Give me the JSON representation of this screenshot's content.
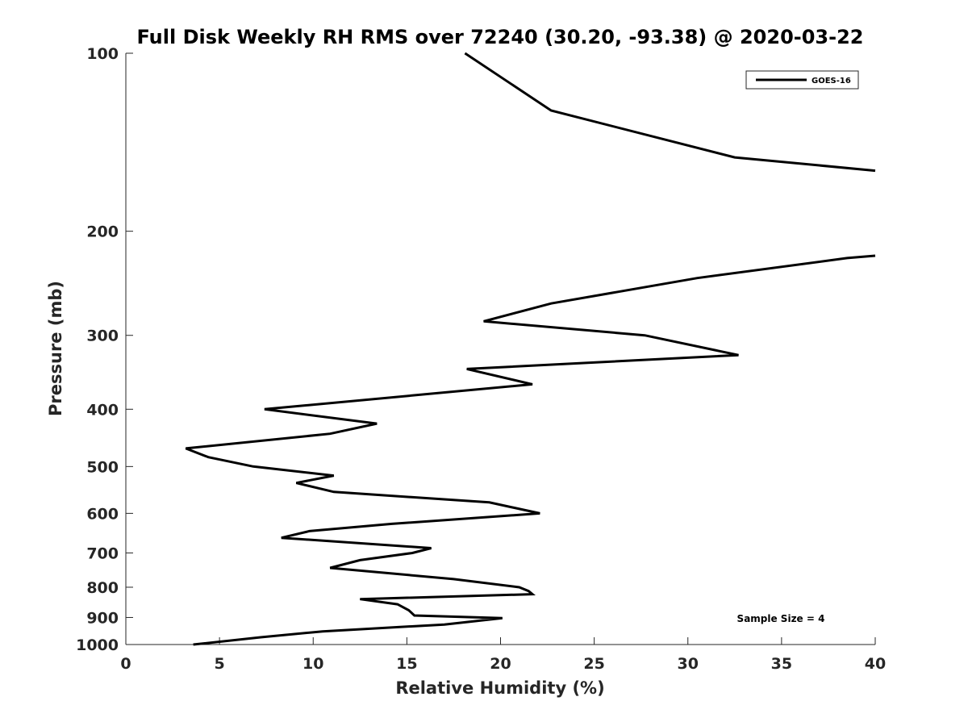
{
  "chart_data": {
    "type": "line",
    "title": "Full Disk Weekly RH RMS over 72240 (30.20, -93.38) @ 2020-03-22",
    "xlabel": "Relative Humidity (%)",
    "ylabel": "Pressure (mb)",
    "xlim": [
      0,
      40
    ],
    "ylim": [
      100,
      1000
    ],
    "yscale": "log",
    "yaxis_reversed": true,
    "xticks": [
      0,
      5,
      10,
      15,
      20,
      25,
      30,
      35,
      40
    ],
    "yticks": [
      100,
      200,
      300,
      400,
      500,
      600,
      700,
      800,
      900,
      1000
    ],
    "grid": false,
    "legend_position": "top-right",
    "annotations": [
      "Sample Size = 4"
    ],
    "series": [
      {
        "name": "GOES-16",
        "color": "#000000",
        "segments": [
          [
            [
              18.1,
              100
            ],
            [
              22.7,
              125
            ],
            [
              32.5,
              150
            ],
            [
              40.0,
              158
            ]
          ],
          [
            [
              40.0,
              220
            ],
            [
              38.5,
              222
            ],
            [
              30.5,
              240
            ],
            [
              22.7,
              265
            ],
            [
              19.1,
              284
            ],
            [
              27.7,
              300
            ],
            [
              32.7,
              324
            ],
            [
              18.2,
              342
            ],
            [
              21.7,
              363
            ],
            [
              7.4,
              400
            ],
            [
              13.4,
              423
            ],
            [
              10.9,
              440
            ],
            [
              3.2,
              466
            ],
            [
              4.4,
              482
            ],
            [
              6.8,
              500
            ],
            [
              11.1,
              518
            ],
            [
              9.1,
              533
            ],
            [
              11.1,
              552
            ],
            [
              19.4,
              575
            ],
            [
              22.1,
              600
            ],
            [
              14.2,
              625
            ],
            [
              9.8,
              643
            ],
            [
              8.3,
              660
            ],
            [
              16.3,
              687
            ],
            [
              15.3,
              700
            ],
            [
              12.5,
              720
            ],
            [
              10.9,
              742
            ],
            [
              17.5,
              775
            ],
            [
              21.0,
              800
            ],
            [
              21.5,
              812
            ],
            [
              21.7,
              822
            ],
            [
              12.5,
              838
            ],
            [
              14.5,
              855
            ],
            [
              15.1,
              875
            ],
            [
              15.4,
              893
            ],
            [
              20.1,
              902
            ],
            [
              17.0,
              925
            ],
            [
              10.5,
              950
            ],
            [
              7.2,
              972
            ],
            [
              3.6,
              1000
            ]
          ]
        ]
      }
    ]
  }
}
